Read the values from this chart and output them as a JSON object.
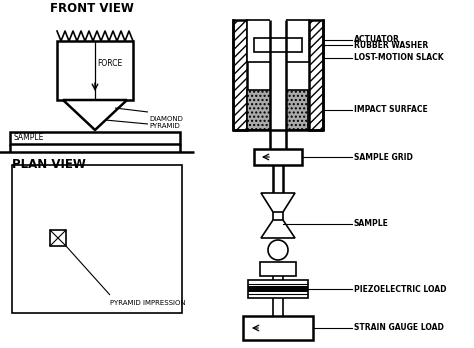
{
  "bg_color": "#ffffff",
  "line_color": "#000000",
  "title_front": "FRONT VIEW",
  "title_plan": "PLAN VIEW",
  "labels": {
    "actuator": "ACTUATOR",
    "rubber_washer": "RUBBER WASHER",
    "lost_motion": "LOST-MOTION SLACK",
    "impact_surface": "IMPACT SURFACE",
    "sample_grid": "SAMPLE GRID",
    "sample": "SAMPLE",
    "piezoelectric": "PIEZOELECTRIC LOAD",
    "strain_gauge": "STRAIN GAUGE LOAD",
    "force": "FORCE",
    "diamond_pyramid": "DIAMOND\nPYRAMID",
    "sample_front": "SAMPLE",
    "pyramid_impression": "PYRAMID IMPRESSION"
  },
  "font_size_title": 8.5,
  "font_size_label": 5.5
}
